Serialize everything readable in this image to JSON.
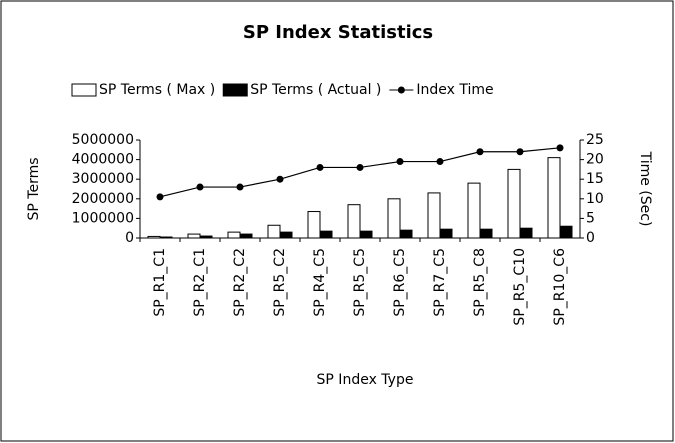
{
  "chart_data": {
    "type": "bar",
    "title": "SP Index Statistics",
    "x_label": "SP Index Type",
    "y_label": "SP Terms",
    "y2_label": "Time (Sec)",
    "categories": [
      "SP_R1_C1",
      "SP_R2_C1",
      "SP_R2_C2",
      "SP_R5_C2",
      "SP_R4_C5",
      "SP_R5_C5",
      "SP_R6_C5",
      "SP_R7_C5",
      "SP_R5_C8",
      "SP_R5_C10",
      "SP_R10_C6"
    ],
    "series": [
      {
        "name": "SP Terms ( Max )",
        "color": "#ffffff",
        "type": "bar",
        "values": [
          80000,
          200000,
          300000,
          650000,
          1350000,
          1700000,
          2000000,
          2300000,
          2800000,
          3500000,
          4100000
        ]
      },
      {
        "name": "SP Terms ( Actual )",
        "color": "#000000",
        "type": "bar",
        "values": [
          50000,
          100000,
          200000,
          300000,
          350000,
          350000,
          400000,
          450000,
          450000,
          500000,
          600000
        ]
      },
      {
        "name": "Index Time",
        "color": "#000000",
        "type": "line",
        "axis": "y2",
        "values": [
          10.5,
          13,
          13,
          15,
          18,
          18,
          19.5,
          19.5,
          22,
          22,
          23
        ]
      }
    ],
    "ylim": [
      0,
      5000000
    ],
    "yticks": [
      0,
      1000000,
      2000000,
      3000000,
      4000000,
      5000000
    ],
    "y2lim": [
      0,
      25
    ],
    "y2ticks": [
      0,
      5,
      10,
      15,
      20,
      25
    ],
    "legend": "top"
  }
}
